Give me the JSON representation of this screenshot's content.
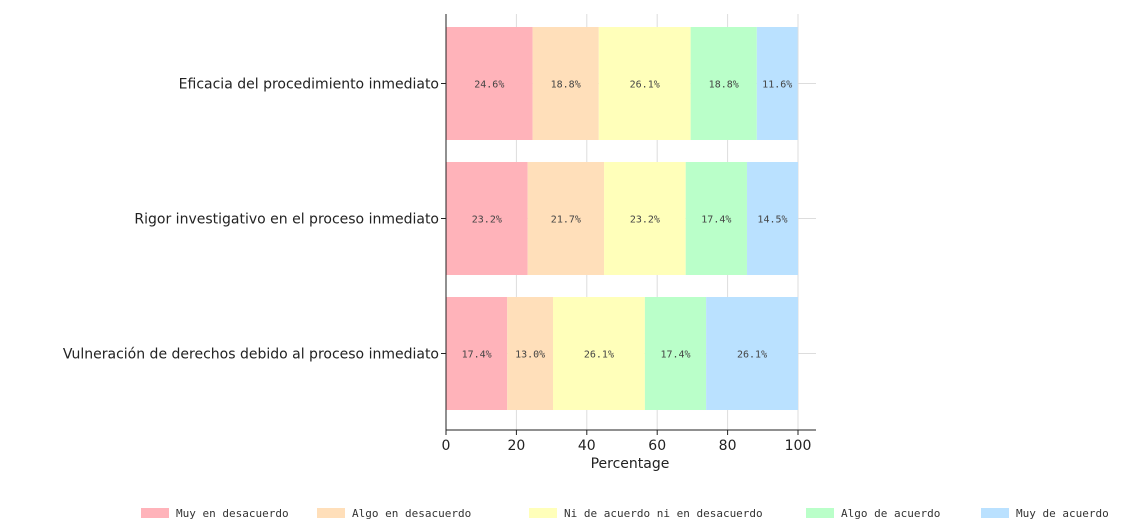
{
  "chart_data": {
    "type": "bar",
    "orientation": "horizontal",
    "stacked": true,
    "title": "",
    "xlabel": "Percentage",
    "ylabel": "",
    "xlim": [
      0,
      100
    ],
    "xticks": [
      0,
      20,
      40,
      60,
      80,
      100
    ],
    "grid": true,
    "legend_position": "bottom",
    "categories": [
      "Eficacia del procedimiento inmediato",
      "Rigor investigativo en el proceso inmediato",
      "Vulneración de derechos debido al proceso inmediato"
    ],
    "series": [
      {
        "name": "Muy en desacuerdo",
        "color": "#ffb3ba",
        "values": [
          24.6,
          23.2,
          17.4
        ],
        "labels": [
          "24.6%",
          "23.2%",
          "17.4%"
        ]
      },
      {
        "name": "Algo en desacuerdo",
        "color": "#ffdfba",
        "values": [
          18.8,
          21.7,
          13.0
        ],
        "labels": [
          "18.8%",
          "21.7%",
          "13.0%"
        ]
      },
      {
        "name": "Ni de acuerdo ni en desacuerdo",
        "color": "#ffffba",
        "values": [
          26.1,
          23.2,
          26.1
        ],
        "labels": [
          "26.1%",
          "23.2%",
          "26.1%"
        ]
      },
      {
        "name": "Algo de acuerdo",
        "color": "#baffc9",
        "values": [
          18.8,
          17.4,
          17.4
        ],
        "labels": [
          "18.8%",
          "17.4%",
          "17.4%"
        ]
      },
      {
        "name": "Muy de acuerdo",
        "color": "#bae1ff",
        "values": [
          11.6,
          14.5,
          26.1
        ],
        "labels": [
          "11.6%",
          "14.5%",
          "26.1%"
        ]
      }
    ]
  }
}
